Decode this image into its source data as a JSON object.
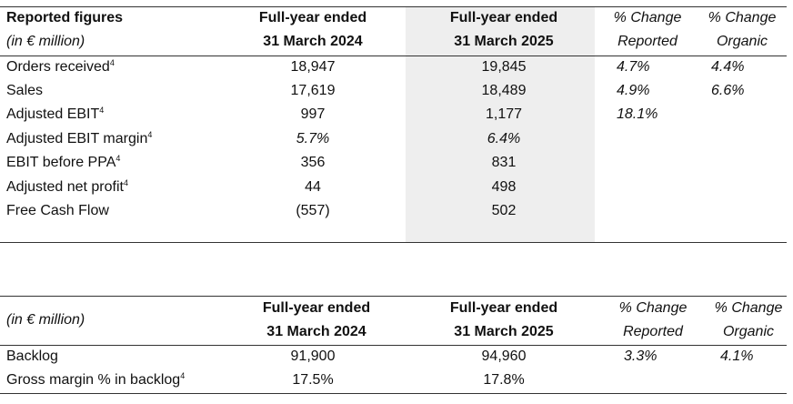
{
  "table1": {
    "header": {
      "title": "Reported figures",
      "unit": "(in € million)",
      "col2_line1": "Full-year ended",
      "col2_line2": "31 March 2024",
      "col3_line1": "Full-year ended",
      "col3_line2": "31 March 2025",
      "col4_line1": "% Change",
      "col4_line2": "Reported",
      "col5_line1": "% Change",
      "col5_line2": "Organic"
    },
    "rows": [
      {
        "label": "Orders received",
        "sup": "4",
        "fy2024": "18,947",
        "fy2025": "19,845",
        "reported": "4.7%",
        "organic": "4.4%"
      },
      {
        "label": "Sales",
        "sup": "",
        "fy2024": "17,619",
        "fy2025": "18,489",
        "reported": "4.9%",
        "organic": "6.6%"
      },
      {
        "label": "Adjusted EBIT",
        "sup": "4",
        "fy2024": "997",
        "fy2025": "1,177",
        "reported": "18.1%",
        "organic": ""
      },
      {
        "label": "Adjusted EBIT margin",
        "sup": "4",
        "fy2024": "5.7%",
        "fy2025": "6.4%",
        "reported": "",
        "organic": ""
      },
      {
        "label": "EBIT before PPA",
        "sup": "4",
        "fy2024": "356",
        "fy2025": "831",
        "reported": "",
        "organic": ""
      },
      {
        "label": "Adjusted net profit",
        "sup": "4",
        "fy2024": "44",
        "fy2025": "498",
        "reported": "",
        "organic": ""
      },
      {
        "label": "Free Cash Flow",
        "sup": "",
        "fy2024": "(557)",
        "fy2025": "502",
        "reported": "",
        "organic": ""
      }
    ]
  },
  "table2": {
    "header": {
      "unit": "(in € million)",
      "col2_line1": "Full-year ended",
      "col2_line2": "31 March 2024",
      "col3_line1": "Full-year ended",
      "col3_line2": "31 March 2025",
      "col4_line1": "% Change",
      "col4_line2": "Reported",
      "col5_line1": "% Change",
      "col5_line2": "Organic"
    },
    "rows": [
      {
        "label": "Backlog",
        "sup": "",
        "fy2024": "91,900",
        "fy2025": "94,960",
        "reported": "3.3%",
        "organic": "4.1%"
      },
      {
        "label": "Gross margin % in backlog",
        "sup": "4",
        "fy2024": "17.5%",
        "fy2025": "17.8%",
        "reported": "",
        "organic": ""
      }
    ]
  }
}
